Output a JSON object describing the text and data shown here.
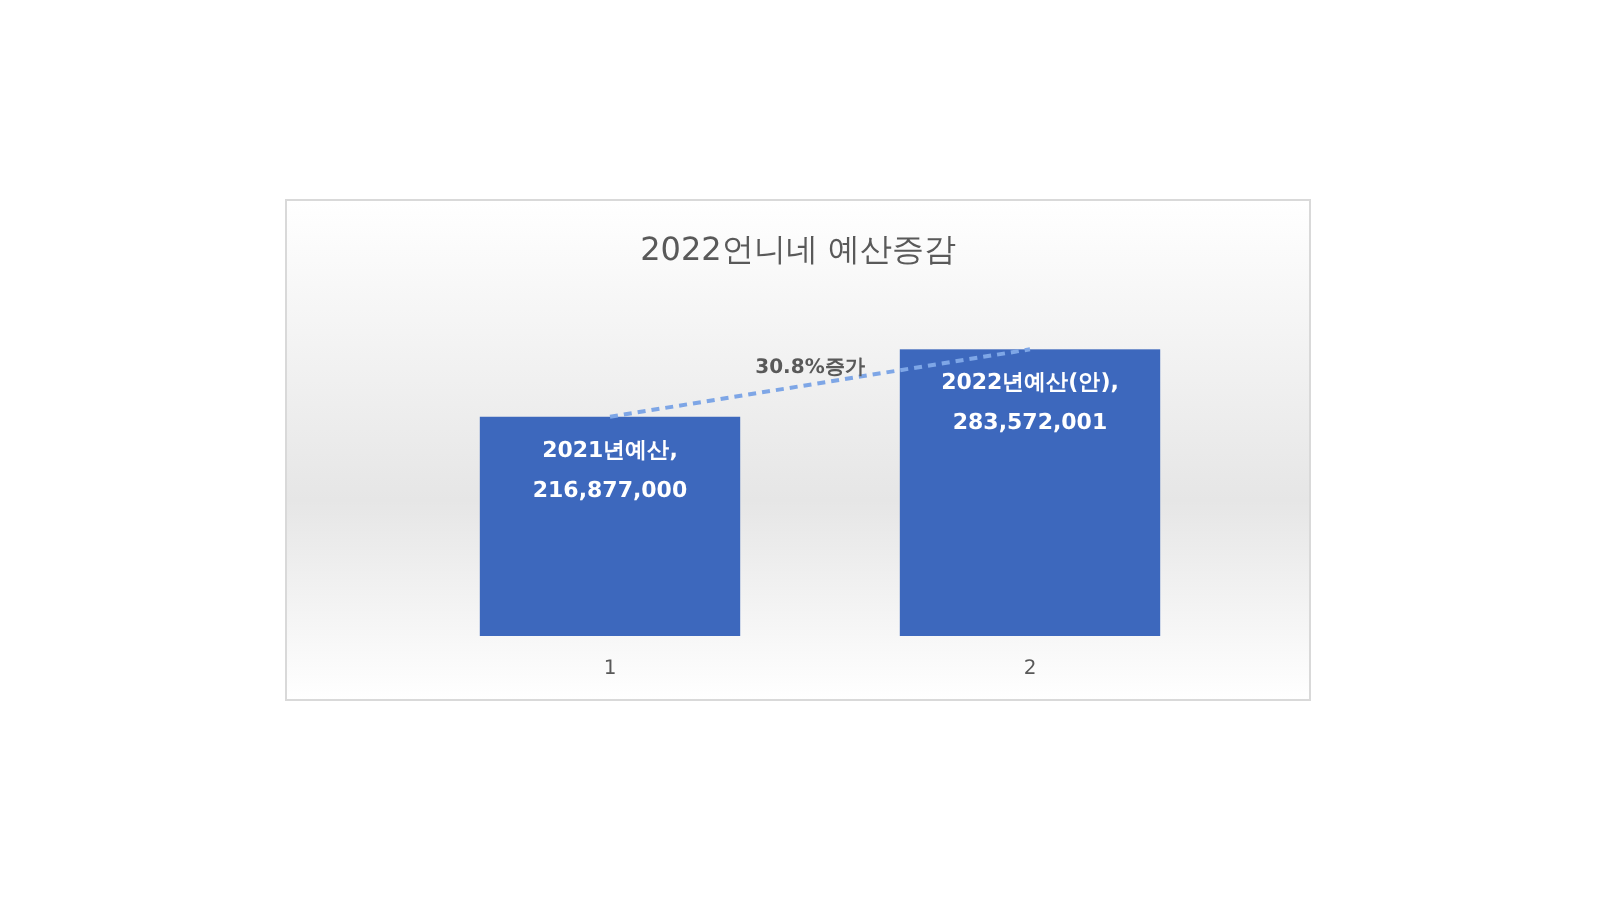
{
  "chart_data": {
    "type": "bar",
    "title": "2022언니네 예산증감",
    "categories": [
      "1",
      "2"
    ],
    "series": [
      {
        "color": "#3d68bd",
        "values": [
          216877000,
          283572001
        ],
        "value_labels": [
          "2021년예산,\n216,877,000",
          "2022년예산(안),\n283,572,001"
        ]
      },
      {
        "type": "line",
        "color": "#7ea6e6",
        "line_style": "dashed",
        "marker": "none",
        "x": [
          "1",
          "2"
        ],
        "values": [
          216877000,
          283572001
        ]
      }
    ],
    "annotations": [
      "30.8%증가"
    ]
  }
}
